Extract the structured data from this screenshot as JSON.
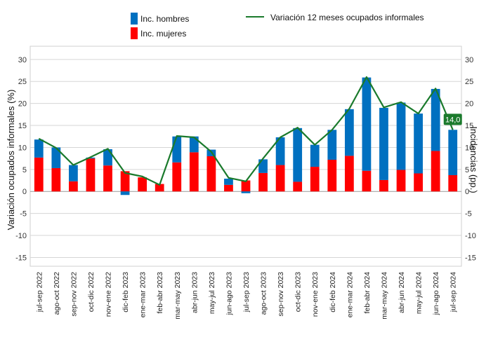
{
  "chart_data": {
    "type": "bar",
    "stacked": true,
    "categories": [
      "jul-sep 2022",
      "ago-oct 2022",
      "sep-nov 2022",
      "oct-dic 2022",
      "nov-ene 2022",
      "dic-feb 2023",
      "ene-mar 2023",
      "feb-abr 2023",
      "mar-may 2023",
      "abr-jun 2023",
      "may-jul 2023",
      "jun-ago 2023",
      "jul-sep 2023",
      "ago-oct 2023",
      "sep-nov 2023",
      "oct-dic 2023",
      "nov-ene 2023",
      "dic-feb 2024",
      "ene-mar 2024",
      "feb-abr 2024",
      "mar-may 2024",
      "abr-jun 2024",
      "may-jul 2024",
      "jun-ago 2024",
      "jul-sep 2024"
    ],
    "series": [
      {
        "name": "Inc.  mujeres",
        "type": "bar",
        "color": "#ff0000",
        "values": [
          7.7,
          5.3,
          2.3,
          7.5,
          5.9,
          4.6,
          3.2,
          1.7,
          6.6,
          8.9,
          8.0,
          1.5,
          2.5,
          4.2,
          6.0,
          2.2,
          5.6,
          7.2,
          8.1,
          4.7,
          2.6,
          4.9,
          4.1,
          9.2,
          3.7
        ]
      },
      {
        "name": "Inc.  hombres",
        "type": "bar",
        "color": "#0070c0",
        "values": [
          4.1,
          4.7,
          3.7,
          0.2,
          3.7,
          -0.8,
          0.0,
          0.0,
          5.9,
          3.6,
          1.5,
          1.4,
          -0.4,
          3.1,
          6.3,
          12.2,
          5.0,
          6.8,
          10.6,
          21.2,
          16.4,
          15.3,
          13.6,
          14.1,
          10.3
        ]
      },
      {
        "name": "Variación 12 meses ocupados informales",
        "type": "line",
        "color": "#1a7a2c",
        "values": [
          12.0,
          9.9,
          6.0,
          7.8,
          9.7,
          4.2,
          3.4,
          1.5,
          12.6,
          12.3,
          9.0,
          3.1,
          2.3,
          7.5,
          12.3,
          14.5,
          10.6,
          14.0,
          18.8,
          26.0,
          19.1,
          20.3,
          17.7,
          23.4,
          14.0
        ]
      }
    ],
    "ylabel": "Variación ocupados informales (%)",
    "y2label": "Incidencias (pp.)",
    "ylim": [
      -17,
      33
    ],
    "yticks": [
      -15,
      -10,
      -5,
      0,
      5,
      10,
      15,
      20,
      25,
      30
    ],
    "y2ticks": [
      -15,
      -10,
      -5,
      0,
      5,
      10,
      15,
      20,
      25,
      30
    ],
    "last_label": "14,0",
    "grid": true,
    "legend_position": "top"
  }
}
